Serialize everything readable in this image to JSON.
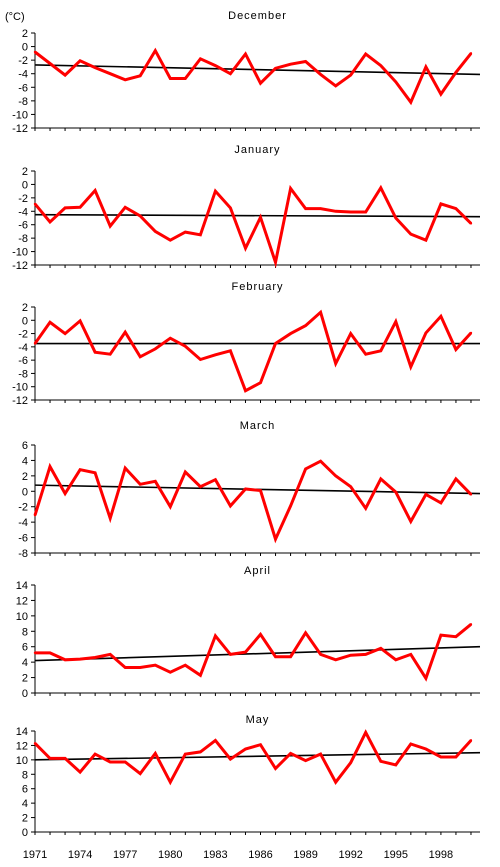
{
  "unit_label": "(°C)",
  "x_tick_labels": [
    "1971",
    "1974",
    "1977",
    "1980",
    "1983",
    "1986",
    "1989",
    "1992",
    "1995",
    "1998"
  ],
  "colors": {
    "series": "#ff0000",
    "trend": "#000000",
    "axis": "#000000"
  },
  "chart_data": [
    {
      "type": "line",
      "title": "December",
      "ylim": [
        -12,
        2
      ],
      "yticks": [
        2,
        0,
        -2,
        -4,
        -6,
        -8,
        -10,
        -12
      ],
      "x": [
        1971,
        1972,
        1973,
        1974,
        1975,
        1976,
        1977,
        1978,
        1979,
        1980,
        1981,
        1982,
        1983,
        1984,
        1985,
        1986,
        1987,
        1988,
        1989,
        1990,
        1991,
        1992,
        1993,
        1994,
        1995,
        1996,
        1997,
        1998,
        1999,
        2000
      ],
      "values": [
        -0.8,
        -2.5,
        -4.2,
        -2.1,
        -3.1,
        -4.0,
        -4.9,
        -4.3,
        -0.6,
        -4.7,
        -4.7,
        -1.8,
        -2.8,
        -4.0,
        -1.1,
        -5.4,
        -3.2,
        -2.6,
        -2.2,
        -4.1,
        -5.8,
        -4.2,
        -1.1,
        -2.8,
        -5.2,
        -8.2,
        -3.0,
        -7.0,
        -3.8,
        -1.0
      ],
      "trend": [
        -2.7,
        -4.1
      ]
    },
    {
      "type": "line",
      "title": "January",
      "ylim": [
        -12,
        2
      ],
      "yticks": [
        2,
        0,
        -2,
        -4,
        -6,
        -8,
        -10,
        -12
      ],
      "x": [
        1971,
        1972,
        1973,
        1974,
        1975,
        1976,
        1977,
        1978,
        1979,
        1980,
        1981,
        1982,
        1983,
        1984,
        1985,
        1986,
        1987,
        1988,
        1989,
        1990,
        1991,
        1992,
        1993,
        1994,
        1995,
        1996,
        1997,
        1998,
        1999,
        2000
      ],
      "values": [
        -2.9,
        -5.6,
        -3.5,
        -3.4,
        -0.9,
        -6.2,
        -3.4,
        -4.7,
        -7.0,
        -8.3,
        -7.1,
        -7.5,
        -1.0,
        -3.5,
        -9.5,
        -4.9,
        -11.6,
        -0.6,
        -3.6,
        -3.6,
        -4.0,
        -4.1,
        -4.1,
        -0.5,
        -5.0,
        -7.4,
        -8.3,
        -2.9,
        -3.6,
        -5.8
      ],
      "trend": [
        -4.5,
        -4.8
      ]
    },
    {
      "type": "line",
      "title": "February",
      "ylim": [
        -12,
        2
      ],
      "yticks": [
        2,
        0,
        -2,
        -4,
        -6,
        -8,
        -10,
        -12
      ],
      "x": [
        1971,
        1972,
        1973,
        1974,
        1975,
        1976,
        1977,
        1978,
        1979,
        1980,
        1981,
        1982,
        1983,
        1984,
        1985,
        1986,
        1987,
        1988,
        1989,
        1990,
        1991,
        1992,
        1993,
        1994,
        1995,
        1996,
        1997,
        1998,
        1999,
        2000
      ],
      "values": [
        -3.5,
        -0.3,
        -2.0,
        -0.1,
        -4.8,
        -5.1,
        -1.8,
        -5.5,
        -4.3,
        -2.7,
        -3.9,
        -5.9,
        -5.2,
        -4.6,
        -10.6,
        -9.4,
        -3.5,
        -2.0,
        -0.8,
        1.2,
        -6.5,
        -2.0,
        -5.1,
        -4.6,
        -0.2,
        -7.0,
        -1.9,
        0.6,
        -4.4,
        -1.9
      ],
      "trend": [
        -3.5,
        -3.5
      ]
    },
    {
      "type": "line",
      "title": "March",
      "ylim": [
        -8,
        6
      ],
      "yticks": [
        6,
        4,
        2,
        0,
        -2,
        -4,
        -6,
        -8
      ],
      "x": [
        1971,
        1972,
        1973,
        1974,
        1975,
        1976,
        1977,
        1978,
        1979,
        1980,
        1981,
        1982,
        1983,
        1984,
        1985,
        1986,
        1987,
        1988,
        1989,
        1990,
        1991,
        1992,
        1993,
        1994,
        1995,
        1996,
        1997,
        1998,
        1999,
        2000
      ],
      "values": [
        -3.1,
        3.2,
        -0.3,
        2.8,
        2.4,
        -3.5,
        3.0,
        0.9,
        1.3,
        -2.0,
        2.5,
        0.6,
        1.5,
        -1.9,
        0.3,
        0.1,
        -6.2,
        -1.9,
        2.9,
        3.9,
        2.0,
        0.6,
        -2.2,
        1.6,
        -0.1,
        -3.9,
        -0.4,
        -1.5,
        1.6,
        -0.4
      ],
      "trend": [
        0.8,
        -0.3
      ]
    },
    {
      "type": "line",
      "title": "April",
      "ylim": [
        0,
        14
      ],
      "yticks": [
        14,
        12,
        10,
        8,
        6,
        4,
        2,
        0
      ],
      "x": [
        1971,
        1972,
        1973,
        1974,
        1975,
        1976,
        1977,
        1978,
        1979,
        1980,
        1981,
        1982,
        1983,
        1984,
        1985,
        1986,
        1987,
        1988,
        1989,
        1990,
        1991,
        1992,
        1993,
        1994,
        1995,
        1996,
        1997,
        1998,
        1999,
        2000
      ],
      "values": [
        5.2,
        5.2,
        4.3,
        4.4,
        4.6,
        5.0,
        3.3,
        3.3,
        3.6,
        2.7,
        3.6,
        2.3,
        7.4,
        5.0,
        5.3,
        7.6,
        4.7,
        4.7,
        7.8,
        5.0,
        4.3,
        4.9,
        5.0,
        5.8,
        4.3,
        5.0,
        1.9,
        7.5,
        7.3,
        8.9
      ],
      "trend": [
        4.2,
        6.0
      ]
    },
    {
      "type": "line",
      "title": "May",
      "ylim": [
        0,
        14
      ],
      "yticks": [
        14,
        12,
        10,
        8,
        6,
        4,
        2,
        0
      ],
      "x": [
        1971,
        1972,
        1973,
        1974,
        1975,
        1976,
        1977,
        1978,
        1979,
        1980,
        1981,
        1982,
        1983,
        1984,
        1985,
        1986,
        1987,
        1988,
        1989,
        1990,
        1991,
        1992,
        1993,
        1994,
        1995,
        1996,
        1997,
        1998,
        1999,
        2000
      ],
      "values": [
        12.3,
        10.2,
        10.2,
        8.3,
        10.8,
        9.7,
        9.7,
        8.1,
        10.9,
        6.9,
        10.8,
        11.1,
        12.7,
        10.1,
        11.5,
        12.1,
        8.8,
        10.9,
        9.9,
        10.8,
        6.9,
        9.6,
        13.8,
        9.8,
        9.3,
        12.2,
        11.5,
        10.4,
        10.4,
        12.7
      ],
      "trend": [
        10.0,
        11.0
      ]
    }
  ]
}
